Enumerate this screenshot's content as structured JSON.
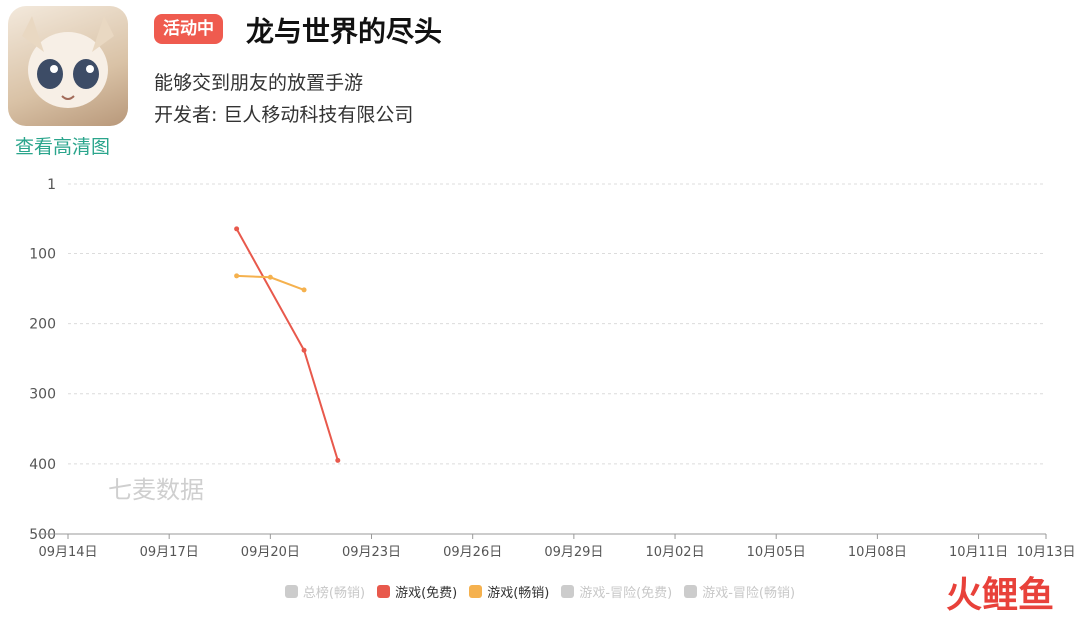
{
  "app": {
    "status_badge": "活动中",
    "title": "龙与世界的尽头",
    "subtitle": "能够交到朋友的放置手游",
    "developer_label": "开发者:",
    "developer_name": "巨人移动科技有限公司",
    "hd_link": "查看高清图"
  },
  "chart_data": {
    "type": "line",
    "x_ticks": [
      "09月14日",
      "09月17日",
      "09月20日",
      "09月23日",
      "09月26日",
      "09月29日",
      "10月02日",
      "10月05日",
      "10月08日",
      "10月11日",
      "10月13日"
    ],
    "y_ticks": [
      1,
      100,
      200,
      300,
      400,
      500
    ],
    "ylim": [
      1,
      500
    ],
    "y_inverted": true,
    "grid": true,
    "legend_position": "bottom",
    "series": [
      {
        "name": "总榜(畅销)",
        "color": "#cccccc",
        "active": false,
        "points": []
      },
      {
        "name": "游戏(免费)",
        "color": "#e8594c",
        "active": true,
        "points": [
          {
            "x": "09月19日",
            "y": 65
          },
          {
            "x": "09月21日",
            "y": 238
          },
          {
            "x": "09月22日",
            "y": 395
          }
        ]
      },
      {
        "name": "游戏(畅销)",
        "color": "#f5b14e",
        "active": true,
        "points": [
          {
            "x": "09月19日",
            "y": 132
          },
          {
            "x": "09月20日",
            "y": 134
          },
          {
            "x": "09月21日",
            "y": 152
          }
        ]
      },
      {
        "name": "游戏-冒险(免费)",
        "color": "#cccccc",
        "active": false,
        "points": []
      },
      {
        "name": "游戏-冒险(畅销)",
        "color": "#cccccc",
        "active": false,
        "points": []
      }
    ],
    "watermark": "七麦数据"
  },
  "brand_watermark": {
    "chars": [
      "火",
      "鲤",
      "鱼"
    ],
    "colors": [
      "#e8413a",
      "#e8413a",
      "#e8413a"
    ]
  }
}
